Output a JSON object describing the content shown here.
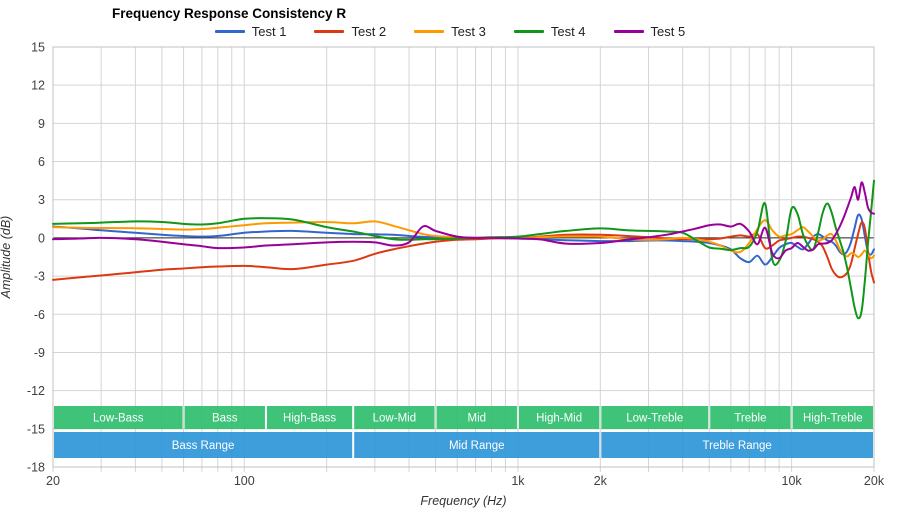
{
  "title": "Frequency Response Consistency R",
  "chart_data": {
    "type": "line",
    "title": "Frequency Response Consistency R",
    "xlabel": "Frequency (Hz)",
    "ylabel": "Amplitude (dB)",
    "x_scale": "log",
    "xlim": [
      20,
      20000
    ],
    "ylim": [
      -18,
      15
    ],
    "grid": true,
    "legend_position": "top",
    "y_ticks": [
      15,
      12,
      9,
      6,
      3,
      0,
      -3,
      -6,
      -9,
      -12,
      -15,
      -18
    ],
    "x_ticks_labeled": [
      {
        "f": 20,
        "label": "20"
      },
      {
        "f": 100,
        "label": "100"
      },
      {
        "f": 1000,
        "label": "1k"
      },
      {
        "f": 2000,
        "label": "2k"
      },
      {
        "f": 10000,
        "label": "10k"
      },
      {
        "f": 20000,
        "label": "20k"
      }
    ],
    "x_minor_ticks": [
      20,
      30,
      40,
      50,
      60,
      70,
      80,
      90,
      100,
      200,
      300,
      400,
      500,
      600,
      700,
      800,
      900,
      1000,
      2000,
      3000,
      4000,
      5000,
      6000,
      7000,
      8000,
      9000,
      10000,
      20000
    ],
    "x": [
      20,
      25,
      30,
      40,
      50,
      60,
      70,
      80,
      100,
      120,
      150,
      200,
      250,
      300,
      350,
      400,
      450,
      500,
      600,
      700,
      800,
      1000,
      1200,
      1500,
      2000,
      2500,
      3000,
      3500,
      4000,
      4500,
      5000,
      5500,
      6000,
      6500,
      7000,
      7500,
      8000,
      8500,
      9000,
      9500,
      10000,
      10500,
      11000,
      11500,
      12000,
      12500,
      13000,
      13500,
      14000,
      14500,
      15000,
      15500,
      16000,
      16500,
      17000,
      17500,
      18000,
      18500,
      19000,
      19500,
      20000
    ],
    "series": [
      {
        "name": "Test 1",
        "color": "#3366cc",
        "values": [
          0.9,
          0.75,
          0.6,
          0.4,
          0.25,
          0.15,
          0.1,
          0.15,
          0.4,
          0.5,
          0.55,
          0.4,
          0.3,
          0.28,
          0.25,
          0.15,
          0.08,
          0.05,
          0.02,
          0.0,
          0.0,
          -0.05,
          -0.1,
          -0.18,
          -0.25,
          -0.25,
          -0.2,
          -0.2,
          -0.25,
          -0.3,
          -0.4,
          -0.6,
          -0.9,
          -1.6,
          -1.9,
          -1.4,
          -2.1,
          -1.5,
          -0.8,
          -0.5,
          -0.4,
          -0.7,
          -0.9,
          -0.45,
          0.1,
          0.3,
          0.1,
          -0.2,
          -0.3,
          -0.6,
          -1.1,
          -1.3,
          -1.0,
          -0.3,
          0.8,
          1.8,
          1.5,
          0.2,
          -1.1,
          -1.3,
          -0.9
        ]
      },
      {
        "name": "Test 2",
        "color": "#dc3912",
        "values": [
          -3.3,
          -3.1,
          -2.95,
          -2.7,
          -2.5,
          -2.4,
          -2.3,
          -2.25,
          -2.2,
          -2.3,
          -2.45,
          -2.1,
          -1.8,
          -1.25,
          -0.9,
          -0.65,
          -0.45,
          -0.3,
          -0.15,
          -0.1,
          -0.05,
          0.0,
          0.1,
          0.25,
          0.25,
          0.15,
          0.05,
          -0.05,
          -0.1,
          -0.1,
          -0.1,
          -0.05,
          0.1,
          0.2,
          0.1,
          0.3,
          -0.8,
          -0.6,
          -0.2,
          -0.1,
          0.0,
          0.1,
          0.1,
          0.0,
          -0.1,
          -0.3,
          -0.7,
          -1.5,
          -2.4,
          -2.9,
          -3.1,
          -3.0,
          -2.7,
          -2.0,
          -0.8,
          0.3,
          1.2,
          0.8,
          -1.0,
          -2.6,
          -3.5
        ]
      },
      {
        "name": "Test 3",
        "color": "#ff9900",
        "values": [
          0.85,
          0.8,
          0.78,
          0.76,
          0.7,
          0.65,
          0.7,
          0.8,
          1.0,
          1.15,
          1.2,
          1.25,
          1.15,
          1.3,
          0.95,
          0.6,
          0.3,
          0.15,
          0.05,
          0.0,
          0.0,
          0.0,
          0.05,
          0.12,
          0.1,
          -0.1,
          -0.15,
          -0.1,
          0.0,
          -0.1,
          -0.3,
          -0.6,
          -1.0,
          -1.1,
          -0.4,
          0.7,
          1.4,
          0.6,
          0.1,
          0.2,
          0.3,
          0.6,
          0.85,
          0.5,
          0.1,
          -0.2,
          -0.1,
          0.2,
          0.3,
          -0.2,
          -0.9,
          -1.3,
          -1.45,
          -1.2,
          -1.3,
          -1.5,
          -1.3,
          -1.0,
          -1.3,
          -1.6,
          -1.4
        ]
      },
      {
        "name": "Test 4",
        "color": "#109618",
        "values": [
          1.1,
          1.15,
          1.2,
          1.3,
          1.25,
          1.1,
          1.05,
          1.15,
          1.5,
          1.55,
          1.45,
          0.85,
          0.5,
          0.15,
          -0.1,
          -0.15,
          -0.1,
          -0.1,
          -0.05,
          0.0,
          0.05,
          0.1,
          0.3,
          0.55,
          0.75,
          0.6,
          0.55,
          0.5,
          0.4,
          -0.2,
          -0.75,
          -0.85,
          -0.95,
          -0.8,
          -0.7,
          0.5,
          2.7,
          -1.7,
          -1.8,
          -0.3,
          2.3,
          1.9,
          0.3,
          -0.6,
          -0.9,
          0.4,
          2.0,
          2.7,
          2.0,
          0.8,
          -0.2,
          -1.2,
          -2.5,
          -4.0,
          -5.5,
          -6.3,
          -5.8,
          -3.5,
          -0.5,
          2.0,
          4.5
        ]
      },
      {
        "name": "Test 5",
        "color": "#990099",
        "values": [
          -0.1,
          -0.05,
          0.0,
          -0.1,
          -0.3,
          -0.5,
          -0.65,
          -0.8,
          -0.75,
          -0.6,
          -0.5,
          -0.35,
          -0.3,
          -0.35,
          -0.6,
          -0.35,
          0.9,
          0.55,
          0.1,
          0.0,
          0.0,
          -0.05,
          -0.1,
          -0.45,
          -0.4,
          -0.15,
          0.05,
          0.25,
          0.5,
          0.75,
          1.0,
          1.05,
          0.9,
          1.1,
          0.5,
          -0.5,
          0.8,
          -1.2,
          -1.6,
          -1.0,
          -0.8,
          -0.4,
          -0.7,
          -1.0,
          -0.9,
          -0.5,
          -0.45,
          -0.4,
          -0.2,
          0.3,
          0.9,
          1.6,
          2.4,
          3.2,
          4.0,
          3.0,
          4.35,
          3.6,
          2.4,
          2.0,
          1.9
        ]
      }
    ],
    "bands": {
      "sub_color": "#2ebe6e",
      "range_color": "#2e95d8",
      "label_color": "#ffffff",
      "sub": [
        {
          "label": "Low-Bass",
          "from": 20,
          "to": 60
        },
        {
          "label": "Bass",
          "from": 60,
          "to": 120
        },
        {
          "label": "High-Bass",
          "from": 120,
          "to": 250
        },
        {
          "label": "Low-Mid",
          "from": 250,
          "to": 500
        },
        {
          "label": "Mid",
          "from": 500,
          "to": 1000
        },
        {
          "label": "High-Mid",
          "from": 1000,
          "to": 2000
        },
        {
          "label": "Low-Treble",
          "from": 2000,
          "to": 5000
        },
        {
          "label": "Treble",
          "from": 5000,
          "to": 10000
        },
        {
          "label": "High-Treble",
          "from": 10000,
          "to": 20000
        }
      ],
      "ranges": [
        {
          "label": "Bass Range",
          "from": 20,
          "to": 250
        },
        {
          "label": "Mid Range",
          "from": 250,
          "to": 2000
        },
        {
          "label": "Treble Range",
          "from": 2000,
          "to": 20000
        }
      ]
    },
    "colors": {
      "grid": "#d4d4d4",
      "plot_border": "#c0c0c0",
      "zero_line": "#2b2b2b",
      "tick_label": "#404040",
      "axis_title": "#333333",
      "title": "#000000"
    }
  }
}
